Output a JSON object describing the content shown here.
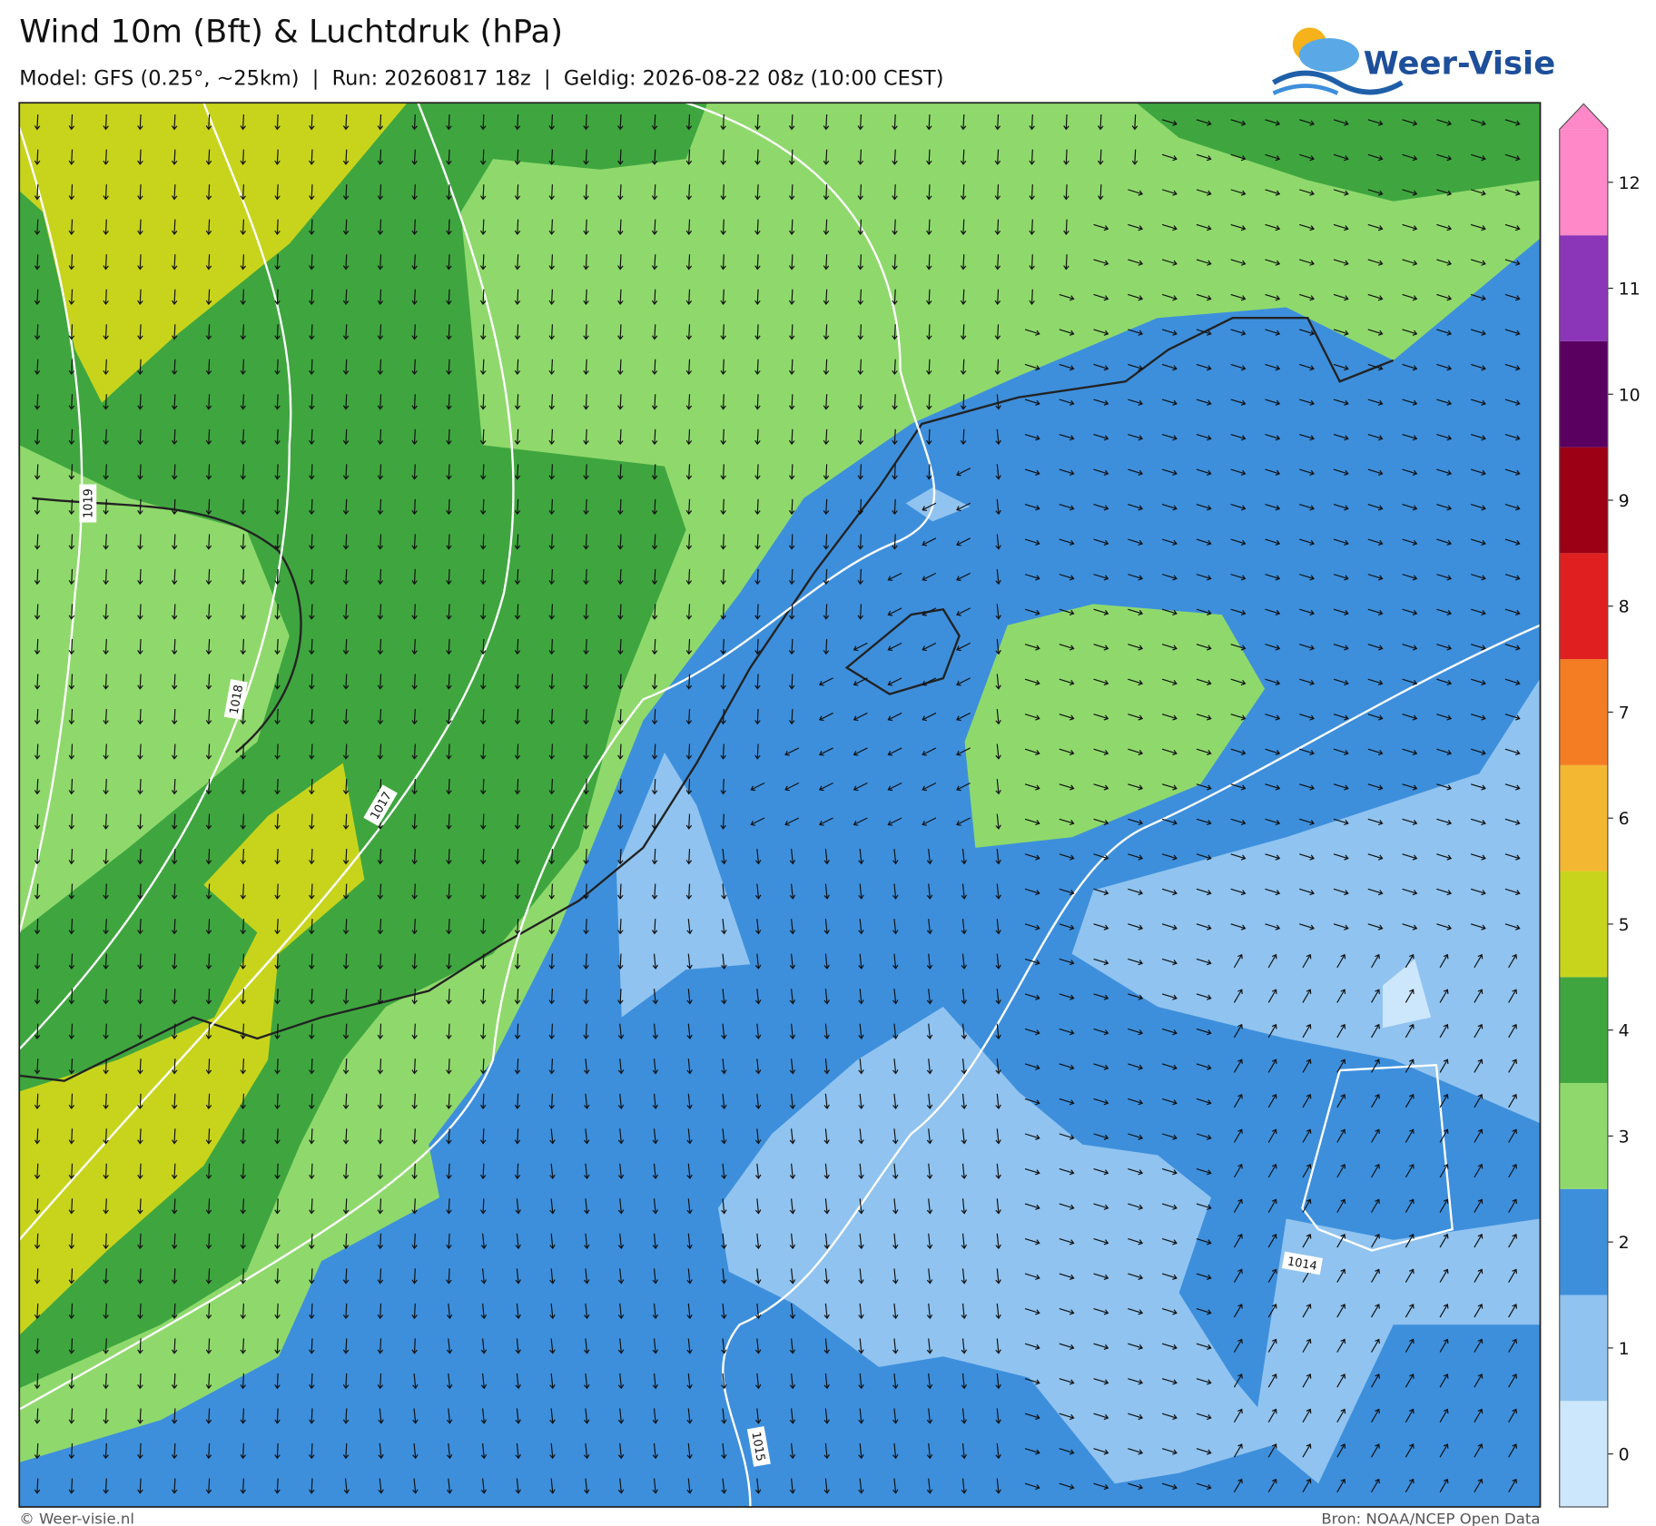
{
  "header": {
    "title": "Wind 10m (Bft) & Luchtdruk (hPa)",
    "subtitle": "Model: GFS (0.25°, ~25km)  |  Run: 20260817 18z  |  Geldig: 2026-08-22 08z (10:00 CEST)",
    "logo": "Weer-Visie"
  },
  "isobars": [
    {
      "label": "1019"
    },
    {
      "label": "1018"
    },
    {
      "label": "1017"
    },
    {
      "label": "1015"
    },
    {
      "label": "1014"
    }
  ],
  "colorbar": {
    "levels": [
      0,
      1,
      2,
      3,
      4,
      5,
      6,
      7,
      8,
      9,
      10,
      11,
      12
    ],
    "colors": [
      "#cce6fb",
      "#90c3ef",
      "#3d8fdc",
      "#8fd96c",
      "#3fa63f",
      "#c8d41c",
      "#f4b731",
      "#f47c22",
      "#e02020",
      "#9b0015",
      "#5a0060",
      "#8b35b8",
      "#ff88c8"
    ]
  },
  "footer": {
    "left": "© Weer-visie.nl",
    "right": "Bron: NOAA/NCEP Open Data"
  }
}
